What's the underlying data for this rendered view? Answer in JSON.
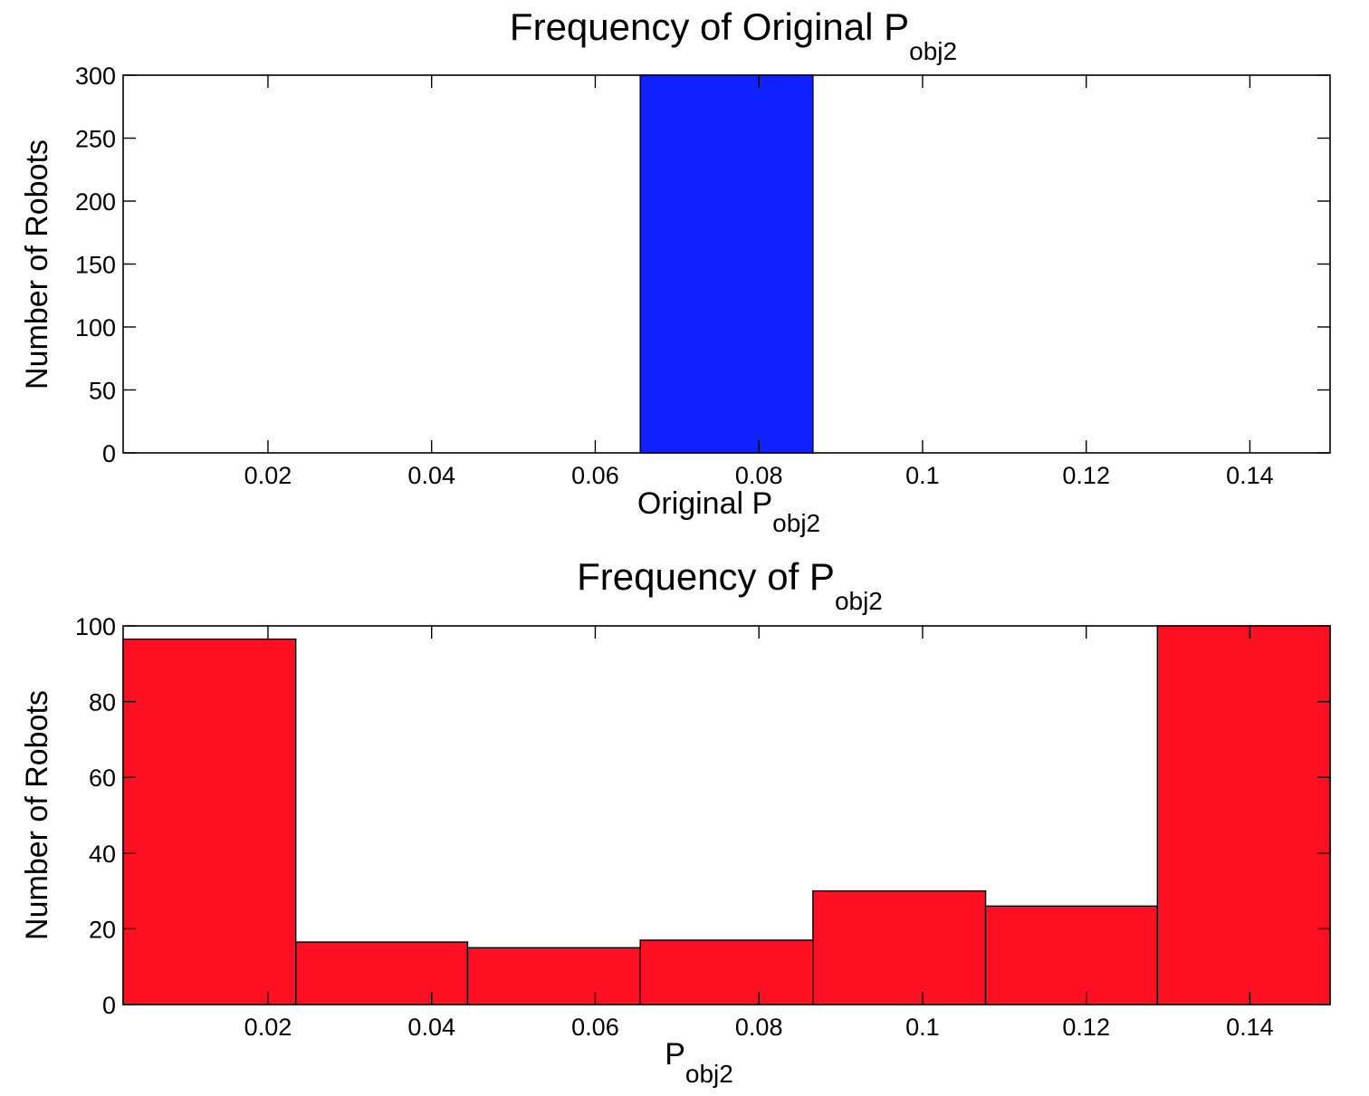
{
  "chart_data": [
    {
      "type": "bar",
      "title": "Frequency of Original P",
      "title_subscript": "obj2",
      "xlabel": "Original P",
      "xlabel_subscript": "obj2",
      "ylabel": "Number of Robots",
      "xlim": [
        0.0023,
        0.1498
      ],
      "ylim": [
        0,
        300
      ],
      "xticks": [
        0.02,
        0.04,
        0.06,
        0.08,
        0.1,
        0.12,
        0.14
      ],
      "xtick_labels": [
        "0.02",
        "0.04",
        "0.06",
        "0.08",
        "0.1",
        "0.12",
        "0.14"
      ],
      "yticks": [
        0,
        50,
        100,
        150,
        200,
        250,
        300
      ],
      "ytick_labels": [
        "0",
        "50",
        "100",
        "150",
        "200",
        "250",
        "300"
      ],
      "bar_color": "#0f22ff",
      "bars": [
        {
          "x0": 0.0655,
          "x1": 0.0866,
          "value": 300
        }
      ]
    },
    {
      "type": "bar",
      "title": "Frequency of P",
      "title_subscript": "obj2",
      "xlabel": "P",
      "xlabel_subscript": "obj2",
      "ylabel": "Number of Robots",
      "xlim": [
        0.0023,
        0.1498
      ],
      "ylim": [
        0,
        100
      ],
      "xticks": [
        0.02,
        0.04,
        0.06,
        0.08,
        0.1,
        0.12,
        0.14
      ],
      "xtick_labels": [
        "0.02",
        "0.04",
        "0.06",
        "0.08",
        "0.1",
        "0.12",
        "0.14"
      ],
      "yticks": [
        0,
        20,
        40,
        60,
        80,
        100
      ],
      "ytick_labels": [
        "0",
        "20",
        "40",
        "60",
        "80",
        "100"
      ],
      "bar_color": "#ff0f22",
      "bars": [
        {
          "x0": 0.0023,
          "x1": 0.0234,
          "value": 96.5
        },
        {
          "x0": 0.0234,
          "x1": 0.0444,
          "value": 16.5
        },
        {
          "x0": 0.0444,
          "x1": 0.0655,
          "value": 15
        },
        {
          "x0": 0.0655,
          "x1": 0.0866,
          "value": 17
        },
        {
          "x0": 0.0866,
          "x1": 0.1077,
          "value": 30
        },
        {
          "x0": 0.1077,
          "x1": 0.1287,
          "value": 26
        },
        {
          "x0": 0.1287,
          "x1": 0.1498,
          "value": 100
        }
      ]
    }
  ]
}
